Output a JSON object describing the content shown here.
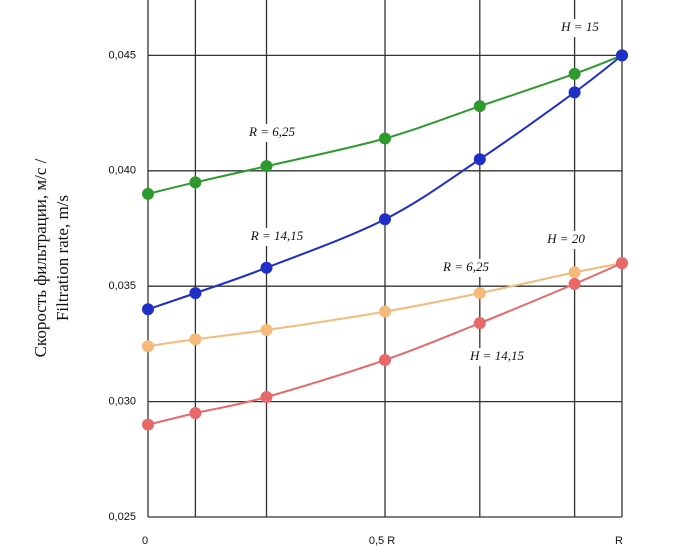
{
  "chart_data": {
    "type": "line",
    "y_label": [
      "Скорость фильтрации, м/с /",
      "Filtration rate, m/s"
    ],
    "x": [
      0,
      0.1,
      0.25,
      0.5,
      0.7,
      0.9,
      1
    ],
    "series": [
      {
        "color": "#2e9a2e",
        "values": [
          0.039,
          0.0395,
          0.0402,
          0.0414,
          0.0428,
          0.0442,
          0.045
        ]
      },
      {
        "color": "#1f2fc8",
        "values": [
          0.034,
          0.0347,
          0.0358,
          0.0379,
          0.0405,
          0.0434,
          0.045
        ]
      },
      {
        "color": "#f5b97a",
        "values": [
          0.0324,
          0.0327,
          0.0331,
          0.0339,
          0.0347,
          0.0356,
          0.036
        ]
      },
      {
        "color": "#e8686a",
        "values": [
          0.029,
          0.0295,
          0.0302,
          0.0318,
          0.0334,
          0.0351,
          0.036
        ]
      }
    ],
    "annotations": [
      "H = 15",
      "R = 6,25",
      "R = 14,15",
      "H = 20",
      "R = 6,25",
      "H = 14,15"
    ],
    "xlim": [
      0,
      1
    ],
    "xticks": [
      0,
      {
        "value": 0.5,
        "label": "0,5 R"
      },
      {
        "value": 1,
        "label": "R"
      }
    ],
    "grid_x": [
      0,
      0.1,
      0.25,
      0.5,
      0.7,
      0.9,
      1
    ],
    "ylim": [
      0.025,
      0.0474
    ],
    "yticks": [
      {
        "value": 0.025,
        "label": "0,025"
      },
      {
        "value": 0.03,
        "label": "0,030"
      },
      {
        "value": 0.035,
        "label": "0,035"
      },
      {
        "value": 0.04,
        "label": "0,040"
      },
      {
        "value": 0.045,
        "label": "0,045"
      }
    ],
    "grid": true
  }
}
